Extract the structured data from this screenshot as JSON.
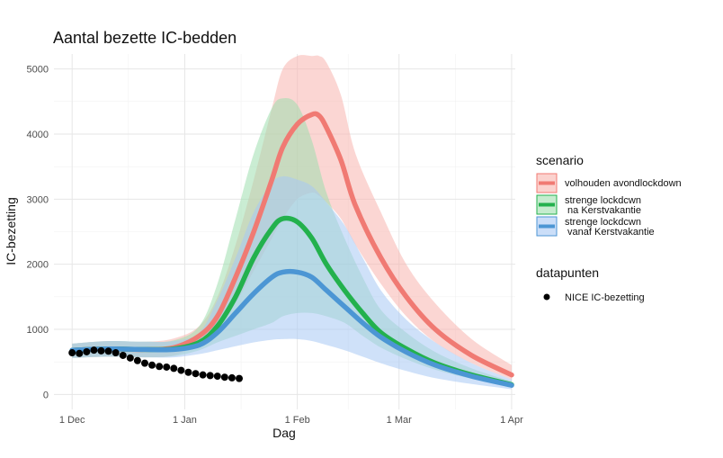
{
  "chart_data": {
    "type": "line",
    "title": "Aantal bezette IC-bedden",
    "xlabel": "Dag",
    "ylabel": "IC-bezetting",
    "x_unit": "days since 1 Dec",
    "xlim": [
      -5,
      122
    ],
    "ylim": [
      -230,
      5230
    ],
    "x_ticks": [
      {
        "value": 0,
        "label": "1 Dec"
      },
      {
        "value": 31,
        "label": "1 Jan"
      },
      {
        "value": 62,
        "label": "1 Feb"
      },
      {
        "value": 90,
        "label": "1 Mar"
      },
      {
        "value": 121,
        "label": "1 Apr"
      }
    ],
    "y_ticks": [
      {
        "value": 0,
        "label": "0"
      },
      {
        "value": 1000,
        "label": "1000"
      },
      {
        "value": 2000,
        "label": "2000"
      },
      {
        "value": 3000,
        "label": "3000"
      },
      {
        "value": 4000,
        "label": "4000"
      },
      {
        "value": 5000,
        "label": "5000"
      }
    ],
    "grid": true,
    "series": [
      {
        "name": "volhouden avondlockdown",
        "color": "#f07a73",
        "band_color": "#f8b4ae",
        "x": [
          0,
          10,
          20,
          28,
          35,
          40,
          45,
          50,
          55,
          58,
          62,
          66,
          68,
          70,
          74,
          78,
          85,
          92,
          100,
          110,
          121
        ],
        "y": [
          680,
          700,
          690,
          720,
          900,
          1200,
          1800,
          2500,
          3300,
          3800,
          4150,
          4300,
          4280,
          4100,
          3600,
          2900,
          2100,
          1500,
          1000,
          600,
          300
        ],
        "lower": [
          560,
          580,
          570,
          600,
          780,
          1000,
          1400,
          1900,
          2400,
          2700,
          3000,
          3100,
          3050,
          2950,
          2700,
          2300,
          1700,
          1200,
          800,
          480,
          230
        ],
        "upper": [
          780,
          820,
          810,
          860,
          1050,
          1500,
          2300,
          3300,
          4400,
          5000,
          5200,
          5200,
          5200,
          5100,
          4600,
          3700,
          2800,
          2000,
          1400,
          850,
          450
        ]
      },
      {
        "name": "strenge lockdcwn\n na Kerstvakantie",
        "color": "#23b14d",
        "band_color": "#9fdfae",
        "x": [
          0,
          10,
          20,
          28,
          35,
          40,
          45,
          50,
          55,
          58,
          62,
          66,
          70,
          75,
          80,
          85,
          92,
          100,
          110,
          121
        ],
        "y": [
          680,
          700,
          690,
          700,
          800,
          1050,
          1500,
          2100,
          2550,
          2700,
          2650,
          2400,
          2000,
          1600,
          1250,
          950,
          700,
          480,
          300,
          150
        ],
        "lower": [
          560,
          580,
          570,
          590,
          680,
          800,
          900,
          1000,
          1100,
          1200,
          1250,
          1250,
          1200,
          1100,
          900,
          720,
          540,
          380,
          240,
          120
        ],
        "upper": [
          780,
          820,
          810,
          830,
          1050,
          1700,
          2700,
          3700,
          4400,
          4550,
          4450,
          3900,
          3100,
          2400,
          1800,
          1300,
          950,
          650,
          400,
          200
        ]
      },
      {
        "name": "strenge lockdcwn\n vanaf Kerstvakantie",
        "color": "#4c96d4",
        "band_color": "#a8c8f4",
        "x": [
          0,
          10,
          20,
          28,
          35,
          40,
          45,
          50,
          55,
          58,
          62,
          66,
          70,
          75,
          80,
          85,
          92,
          100,
          110,
          121
        ],
        "y": [
          680,
          700,
          690,
          690,
          760,
          950,
          1250,
          1550,
          1800,
          1880,
          1880,
          1800,
          1600,
          1350,
          1100,
          880,
          650,
          450,
          280,
          140
        ],
        "lower": [
          560,
          580,
          570,
          570,
          620,
          680,
          740,
          800,
          840,
          850,
          850,
          820,
          760,
          680,
          580,
          480,
          360,
          250,
          160,
          80
        ],
        "upper": [
          780,
          820,
          810,
          820,
          950,
          1450,
          2100,
          2800,
          3250,
          3350,
          3300,
          3200,
          2950,
          2600,
          2100,
          1600,
          1150,
          800,
          480,
          230
        ]
      }
    ],
    "points": {
      "name": "NICE IC-bezetting",
      "color": "#000000",
      "x": [
        0,
        2,
        4,
        6,
        8,
        10,
        12,
        14,
        16,
        18,
        20,
        22,
        24,
        26,
        28,
        30,
        32,
        34,
        36,
        38,
        40,
        42,
        44,
        46
      ],
      "y": [
        640,
        630,
        655,
        680,
        670,
        665,
        640,
        600,
        560,
        520,
        480,
        450,
        430,
        420,
        400,
        370,
        340,
        320,
        300,
        290,
        280,
        265,
        255,
        245
      ]
    },
    "legend": {
      "position": "right",
      "scenario_title": "scenario",
      "data_title": "datapunten"
    }
  }
}
